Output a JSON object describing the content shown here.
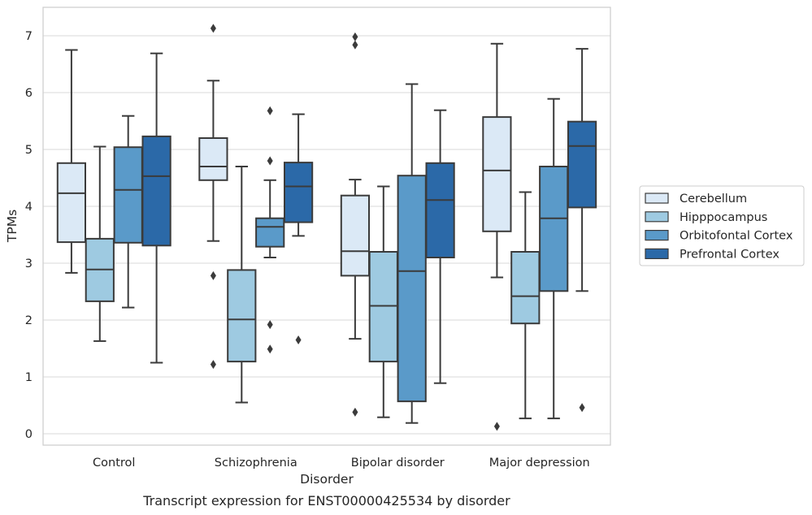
{
  "chart_data": {
    "type": "box",
    "title": "",
    "caption": "Transcript expression for ENST00000425534 by disorder",
    "xlabel": "Disorder",
    "ylabel": "TPMs",
    "ylim": [
      -0.2,
      7.5
    ],
    "yticks": [
      0,
      1,
      2,
      3,
      4,
      5,
      6,
      7
    ],
    "grid": true,
    "legend_placement": "right",
    "categories": [
      "Control",
      "Schizophrenia",
      "Bipolar disorder",
      "Major depression"
    ],
    "series": [
      {
        "name": "Cerebellum",
        "color": "#dbe9f6",
        "boxes": [
          {
            "whislo": 2.83,
            "q1": 3.37,
            "med": 4.23,
            "q3": 4.76,
            "whishi": 6.75,
            "fliers": []
          },
          {
            "whislo": 3.39,
            "q1": 4.46,
            "med": 4.7,
            "q3": 5.2,
            "whishi": 6.21,
            "fliers": [
              7.13,
              2.78,
              1.22
            ]
          },
          {
            "whislo": 1.67,
            "q1": 2.78,
            "med": 3.21,
            "q3": 4.19,
            "whishi": 4.47,
            "fliers": [
              6.98,
              6.84,
              0.38
            ]
          },
          {
            "whislo": 2.75,
            "q1": 3.56,
            "med": 4.63,
            "q3": 5.57,
            "whishi": 6.86,
            "fliers": [
              0.13
            ]
          }
        ]
      },
      {
        "name": "Hipppocampus",
        "color": "#9ecae1",
        "boxes": [
          {
            "whislo": 1.63,
            "q1": 2.33,
            "med": 2.89,
            "q3": 3.43,
            "whishi": 5.05,
            "fliers": []
          },
          {
            "whislo": 0.55,
            "q1": 1.27,
            "med": 2.01,
            "q3": 2.88,
            "whishi": 4.7,
            "fliers": []
          },
          {
            "whislo": 0.29,
            "q1": 1.27,
            "med": 2.25,
            "q3": 3.2,
            "whishi": 4.35,
            "fliers": []
          },
          {
            "whislo": 0.27,
            "q1": 1.94,
            "med": 2.42,
            "q3": 3.2,
            "whishi": 4.25,
            "fliers": []
          }
        ]
      },
      {
        "name": "Orbitofontal Cortex",
        "color": "#5a9ac9",
        "boxes": [
          {
            "whislo": 2.22,
            "q1": 3.36,
            "med": 4.29,
            "q3": 5.04,
            "whishi": 5.59,
            "fliers": []
          },
          {
            "whislo": 3.1,
            "q1": 3.29,
            "med": 3.64,
            "q3": 3.79,
            "whishi": 4.46,
            "fliers": [
              5.68,
              4.8,
              1.92,
              1.49
            ]
          },
          {
            "whislo": 0.19,
            "q1": 0.57,
            "med": 2.86,
            "q3": 4.54,
            "whishi": 6.15,
            "fliers": []
          },
          {
            "whislo": 0.27,
            "q1": 2.51,
            "med": 3.79,
            "q3": 4.7,
            "whishi": 5.89,
            "fliers": []
          }
        ]
      },
      {
        "name": "Prefrontal Cortex",
        "color": "#2b69a8",
        "boxes": [
          {
            "whislo": 1.25,
            "q1": 3.31,
            "med": 4.53,
            "q3": 5.23,
            "whishi": 6.69,
            "fliers": []
          },
          {
            "whislo": 3.48,
            "q1": 3.72,
            "med": 4.35,
            "q3": 4.77,
            "whishi": 5.62,
            "fliers": [
              1.65
            ]
          },
          {
            "whislo": 0.89,
            "q1": 3.1,
            "med": 4.11,
            "q3": 4.76,
            "whishi": 5.69,
            "fliers": []
          },
          {
            "whislo": 2.51,
            "q1": 3.98,
            "med": 5.06,
            "q3": 5.49,
            "whishi": 6.77,
            "fliers": [
              0.46
            ]
          }
        ]
      }
    ]
  }
}
